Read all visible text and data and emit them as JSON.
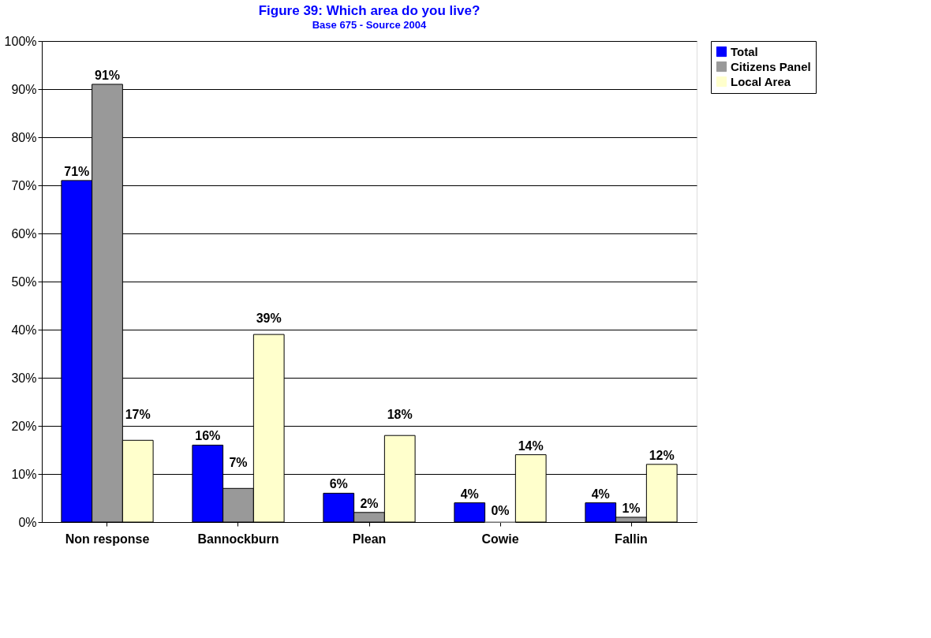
{
  "chart_data": {
    "type": "bar",
    "title": "Figure 39: Which area do you live?",
    "subtitle": "Base 675 - Source 2004",
    "categories": [
      "Non response",
      "Bannockburn",
      "Plean",
      "Cowie",
      "Fallin"
    ],
    "series": [
      {
        "name": "Total",
        "color": "#0000ff",
        "values": [
          71,
          16,
          6,
          4,
          4
        ],
        "value_labels": [
          "71%",
          "16%",
          "6%",
          "4%",
          "4%"
        ]
      },
      {
        "name": "Citizens Panel",
        "color": "#999999",
        "values": [
          91,
          7,
          2,
          0,
          1
        ],
        "value_labels": [
          "91%",
          "7%",
          "2%",
          "0%",
          "1%"
        ]
      },
      {
        "name": "Local Area",
        "color": "#ffffcc",
        "values": [
          17,
          39,
          18,
          14,
          12
        ],
        "value_labels": [
          "17%",
          "39%",
          "18%",
          "14%",
          "12%"
        ]
      }
    ],
    "ylim": [
      0,
      100
    ],
    "yticks": [
      {
        "value": 0,
        "label": "0%"
      },
      {
        "value": 10,
        "label": "10%"
      },
      {
        "value": 20,
        "label": "20%"
      },
      {
        "value": 30,
        "label": "30%"
      },
      {
        "value": 40,
        "label": "40%"
      },
      {
        "value": 50,
        "label": "50%"
      },
      {
        "value": 60,
        "label": "60%"
      },
      {
        "value": 70,
        "label": "70%"
      },
      {
        "value": 80,
        "label": "80%"
      },
      {
        "value": 90,
        "label": "90%"
      },
      {
        "value": 100,
        "label": "100%"
      }
    ],
    "grid": "y",
    "legend": "right"
  }
}
